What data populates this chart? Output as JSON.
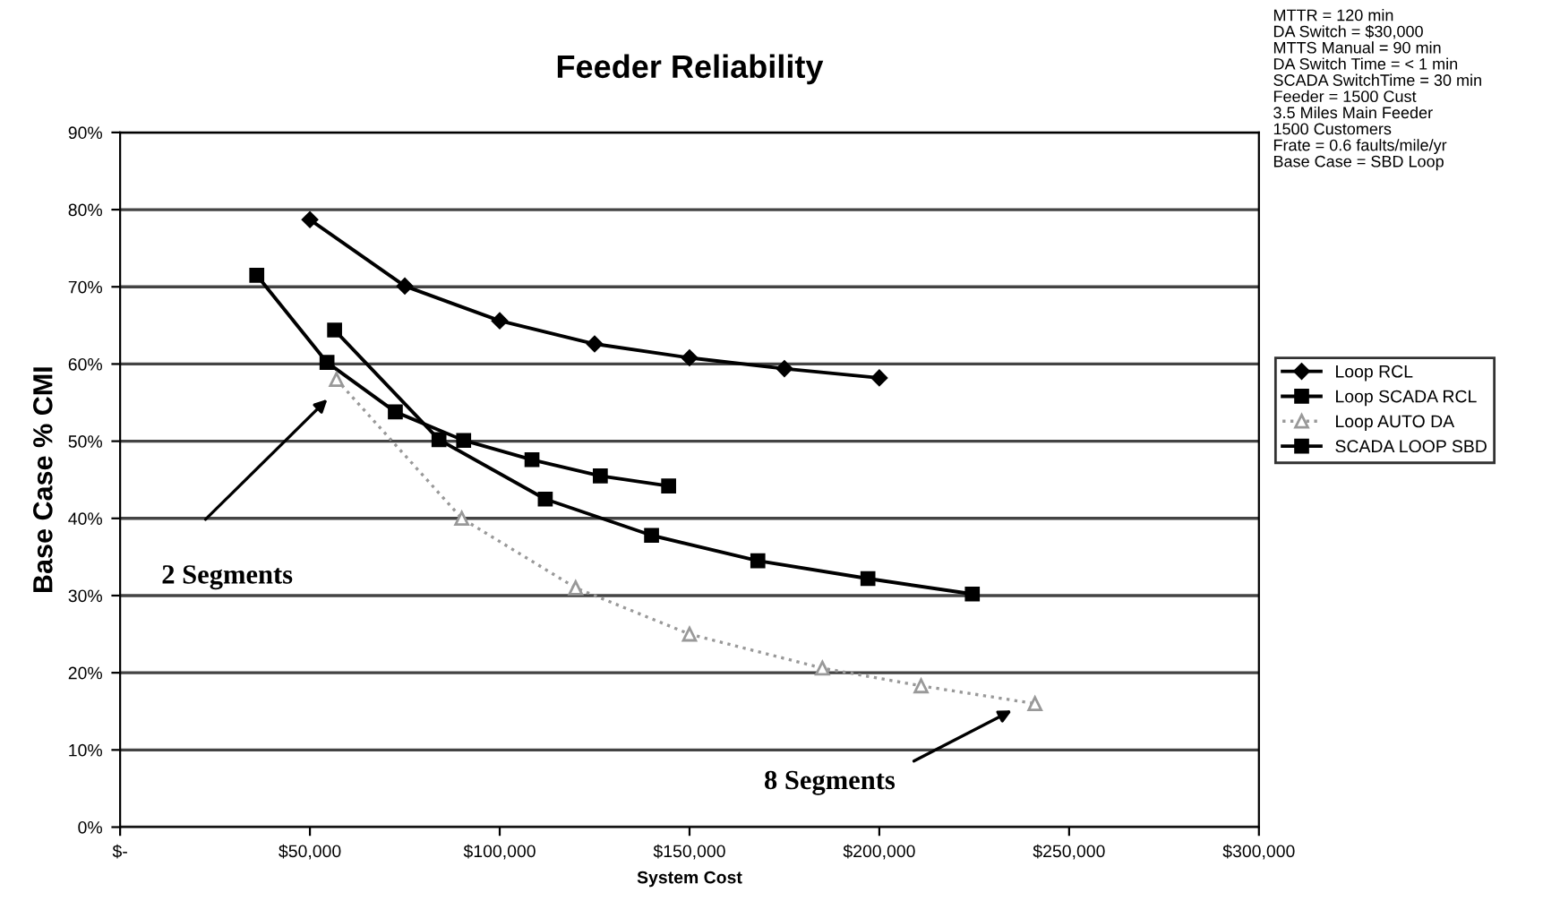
{
  "chart_data": {
    "type": "line",
    "title": "Feeder Reliability",
    "xlabel": "System Cost",
    "ylabel": "Base Case % CMI",
    "xlim": [
      0,
      300000
    ],
    "xticks": [
      {
        "value": 0,
        "label": "$-"
      },
      {
        "value": 50000,
        "label": "$50,000"
      },
      {
        "value": 100000,
        "label": "$100,000"
      },
      {
        "value": 150000,
        "label": "$150,000"
      },
      {
        "value": 200000,
        "label": "$200,000"
      },
      {
        "value": 250000,
        "label": "$250,000"
      },
      {
        "value": 300000,
        "label": "$300,000"
      }
    ],
    "ylim": [
      0,
      90
    ],
    "yticks": [
      {
        "value": 0,
        "label": "0%"
      },
      {
        "value": 10,
        "label": "10%"
      },
      {
        "value": 20,
        "label": "20%"
      },
      {
        "value": 30,
        "label": "30%"
      },
      {
        "value": 40,
        "label": "40%"
      },
      {
        "value": 50,
        "label": "50%"
      },
      {
        "value": 60,
        "label": "60%"
      },
      {
        "value": 70,
        "label": "70%"
      },
      {
        "value": 80,
        "label": "80%"
      },
      {
        "value": 90,
        "label": "90%"
      }
    ],
    "grid": "y",
    "legend": "right",
    "series": [
      {
        "name": "Loop RCL",
        "color": "#000000",
        "marker": "diamond",
        "line_style": "solid",
        "x": [
          50000,
          75000,
          100000,
          125000,
          150000,
          175000,
          200000
        ],
        "values": [
          78.7,
          70.1,
          65.6,
          62.6,
          60.8,
          59.4,
          58.2
        ]
      },
      {
        "name": "Loop SCADA RCL",
        "color": "#000000",
        "marker": "square",
        "line_style": "solid",
        "x": [
          36000,
          54500,
          72500,
          90500,
          108500,
          126500,
          144500
        ],
        "values": [
          71.5,
          60.2,
          53.8,
          50.1,
          47.6,
          45.5,
          44.2
        ]
      },
      {
        "name": "Loop AUTO DA",
        "color": "#999999",
        "marker": "triangle",
        "line_style": "dotted",
        "x": [
          57000,
          90000,
          120000,
          150000,
          185000,
          211000,
          241000
        ],
        "values": [
          58,
          40,
          31,
          25,
          20.6,
          18.3,
          16
        ]
      },
      {
        "name": "SCADA LOOP SBD",
        "color": "#000000",
        "marker": "square",
        "line_style": "solid",
        "x": [
          56500,
          84000,
          112000,
          140000,
          168000,
          197000,
          224500
        ],
        "values": [
          64.4,
          50.2,
          42.5,
          37.8,
          34.5,
          32.2,
          30.2
        ]
      }
    ],
    "annotations": [
      "2 Segments",
      "8 Segments",
      "MTTR = 120 min\nDA Switch = $30,000\nMTTS Manual = 90 min\nDA Switch Time = < 1 min\nSCADA SwitchTime = 30 min\nFeeder = 1500 Cust\n3.5 Miles Main Feeder\n1500 Customers\nFrate = 0.6 faults/mile/yr\nBase Case = SBD Loop"
    ]
  }
}
